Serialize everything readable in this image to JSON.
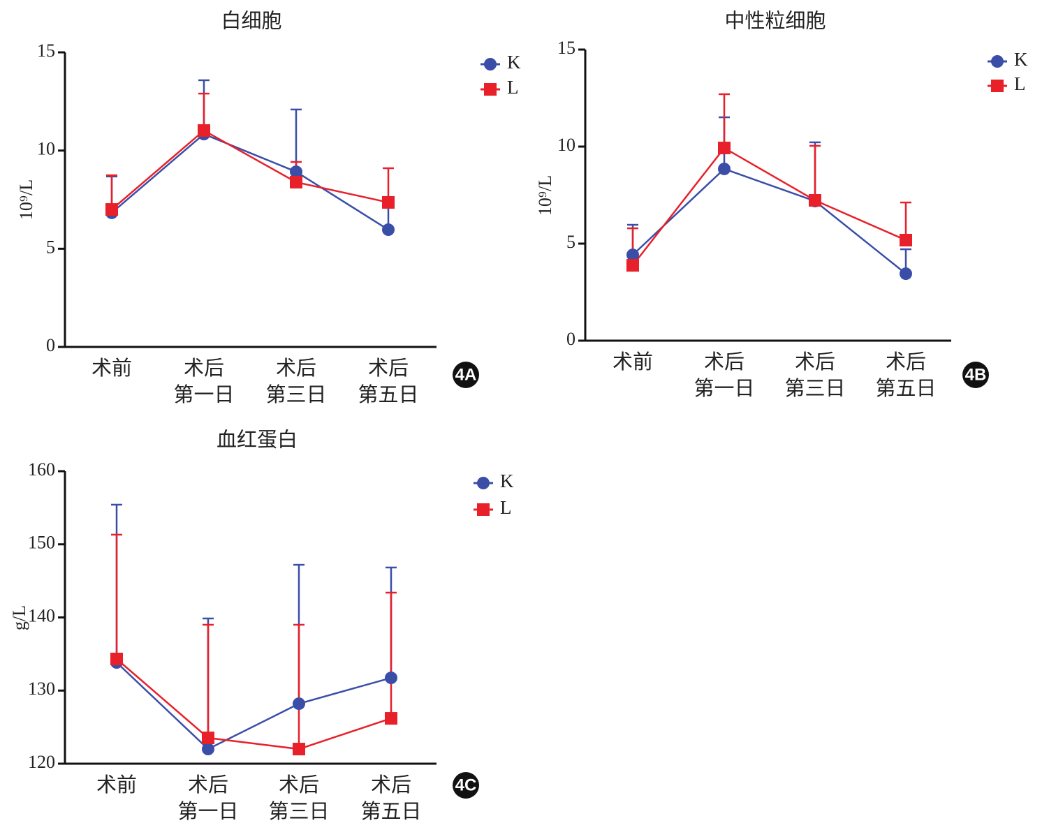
{
  "chart_data": [
    {
      "type": "line",
      "title": "白细胞",
      "y_label": "10⁹/L",
      "panel_label": "4A",
      "categories": [
        "术前",
        "术后\n第一日",
        "术后\n第三日",
        "术后\n第五日"
      ],
      "ylim": [
        0,
        15
      ],
      "yticks": [
        0,
        5,
        10,
        15
      ],
      "series": [
        {
          "name": "K",
          "color": "#3a4ea8",
          "marker": "circle",
          "values": [
            6.83,
            10.84,
            8.92,
            5.97
          ],
          "errors": [
            1.85,
            2.74,
            3.17,
            1.28
          ]
        },
        {
          "name": "L",
          "color": "#e8202a",
          "marker": "square",
          "values": [
            7.0,
            11.02,
            8.39,
            7.36
          ],
          "errors": [
            1.74,
            1.88,
            1.03,
            1.74
          ]
        }
      ]
    },
    {
      "type": "line",
      "title": "中性粒细胞",
      "y_label": "10⁹/L",
      "panel_label": "4B",
      "categories": [
        "术前",
        "术后\n第一日",
        "术后\n第三日",
        "术后\n第五日"
      ],
      "ylim": [
        0,
        15
      ],
      "yticks": [
        0,
        5,
        10,
        15
      ],
      "series": [
        {
          "name": "K",
          "color": "#3a4ea8",
          "marker": "circle",
          "values": [
            4.42,
            8.85,
            7.19,
            3.45
          ],
          "errors": [
            1.55,
            2.66,
            3.03,
            1.26
          ]
        },
        {
          "name": "L",
          "color": "#e8202a",
          "marker": "square",
          "values": [
            3.88,
            9.93,
            7.23,
            5.18
          ],
          "errors": [
            1.91,
            2.77,
            2.81,
            1.94
          ]
        }
      ]
    },
    {
      "type": "line",
      "title": "血红蛋白",
      "y_label": "g/L",
      "panel_label": "4C",
      "categories": [
        "术前",
        "术后\n第一日",
        "术后\n第三日",
        "术后\n第五日"
      ],
      "ylim": [
        120,
        160
      ],
      "yticks": [
        120,
        130,
        140,
        150,
        160
      ],
      "series": [
        {
          "name": "K",
          "color": "#3a4ea8",
          "marker": "circle",
          "values": [
            133.84,
            122.0,
            128.2,
            131.74
          ],
          "errors": [
            21.58,
            17.86,
            19.0,
            15.09
          ]
        },
        {
          "name": "L",
          "color": "#e8202a",
          "marker": "square",
          "values": [
            134.32,
            123.53,
            122.0,
            126.2
          ],
          "errors": [
            17.0,
            15.47,
            17.0,
            17.19
          ]
        }
      ]
    }
  ]
}
